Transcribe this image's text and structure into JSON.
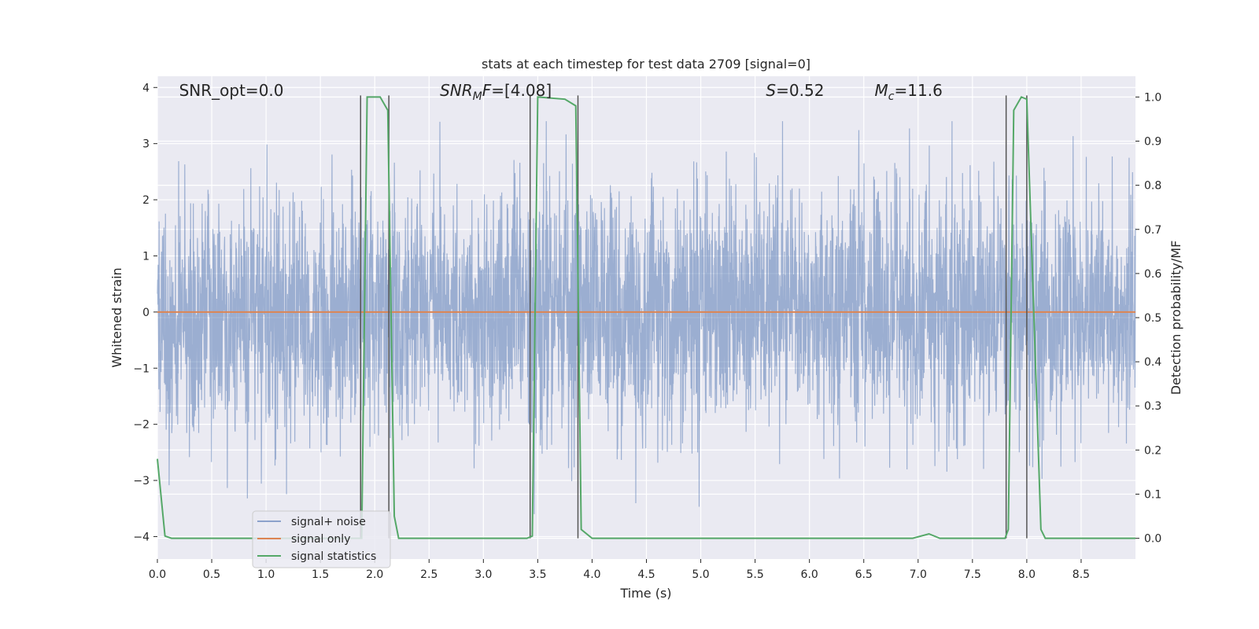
{
  "chart_data": {
    "type": "line",
    "title": "stats at each timestep for test data 2709 [signal=0]",
    "xlabel": "Time (s)",
    "ylabel": "Whitened strain",
    "ylabel_right": "Detection probability/MF",
    "xlim": [
      0,
      9
    ],
    "ylim": [
      -4.4,
      4.2
    ],
    "ylim_right": [
      -0.047,
      1.047
    ],
    "x_ticks": [
      0.0,
      0.5,
      1.0,
      1.5,
      2.0,
      2.5,
      3.0,
      3.5,
      4.0,
      4.5,
      5.0,
      5.5,
      6.0,
      6.5,
      7.0,
      7.5,
      8.0,
      8.5
    ],
    "x_tick_labels": [
      "0.0",
      "0.5",
      "1.0",
      "1.5",
      "2.0",
      "2.5",
      "3.0",
      "3.5",
      "4.0",
      "4.5",
      "5.0",
      "5.5",
      "6.0",
      "6.5",
      "7.0",
      "7.5",
      "8.0",
      "8.5"
    ],
    "y_ticks": [
      -4,
      -3,
      -2,
      -1,
      0,
      1,
      2,
      3,
      4
    ],
    "y_tick_labels": [
      "−4",
      "−3",
      "−2",
      "−1",
      "0",
      "1",
      "2",
      "3",
      "4"
    ],
    "y_ticks_right": [
      0.0,
      0.1,
      0.2,
      0.3,
      0.4,
      0.5,
      0.6,
      0.7,
      0.8,
      0.9,
      1.0
    ],
    "y_tick_labels_right": [
      "0.0",
      "0.1",
      "0.2",
      "0.3",
      "0.4",
      "0.5",
      "0.6",
      "0.7",
      "0.8",
      "0.9",
      "1.0"
    ],
    "grid": true,
    "legend_position": "bottom-left",
    "annotations": [
      {
        "text": "SNR_opt=0.0",
        "x": 0.2,
        "y": 3.95
      },
      {
        "text": "SNR_MF=[4.08]",
        "x": 2.6,
        "y": 3.95
      },
      {
        "text": "S=0.52",
        "x": 5.6,
        "y": 3.95
      },
      {
        "text": "M_c=11.6",
        "x": 6.6,
        "y": 3.95
      }
    ],
    "series": [
      {
        "name": "signal+ noise",
        "axis": "left",
        "color": "#4c72b0",
        "opacity": 0.5,
        "description": "whitened noise time series spanning roughly -3.6 to 3.4",
        "amplitude_range": [
          -3.6,
          3.4
        ]
      },
      {
        "name": "signal only",
        "axis": "left",
        "color": "#dd8452",
        "x": [
          0,
          9
        ],
        "values": [
          0,
          0
        ]
      },
      {
        "name": "signal statistics",
        "axis": "right",
        "color": "#55a868",
        "x": [
          0.0,
          0.07,
          0.13,
          1.88,
          1.93,
          2.05,
          2.12,
          2.18,
          2.22,
          3.4,
          3.45,
          3.5,
          3.75,
          3.85,
          3.9,
          4.0,
          6.95,
          7.1,
          7.2,
          7.8,
          7.83,
          7.88,
          7.95,
          8.0,
          8.13,
          8.17,
          9.0
        ],
        "values": [
          0.18,
          0.005,
          0.0,
          0.0,
          1.0,
          1.0,
          0.97,
          0.05,
          0.0,
          0.0,
          0.005,
          1.0,
          0.995,
          0.98,
          0.02,
          0.0,
          0.0,
          0.01,
          0.0,
          0.0,
          0.02,
          0.97,
          1.0,
          0.995,
          0.02,
          0.0,
          0.0
        ]
      }
    ],
    "vertical_lines": {
      "color": "#555555",
      "x": [
        1.87,
        2.13,
        3.43,
        3.87,
        7.81,
        8.0
      ]
    }
  }
}
